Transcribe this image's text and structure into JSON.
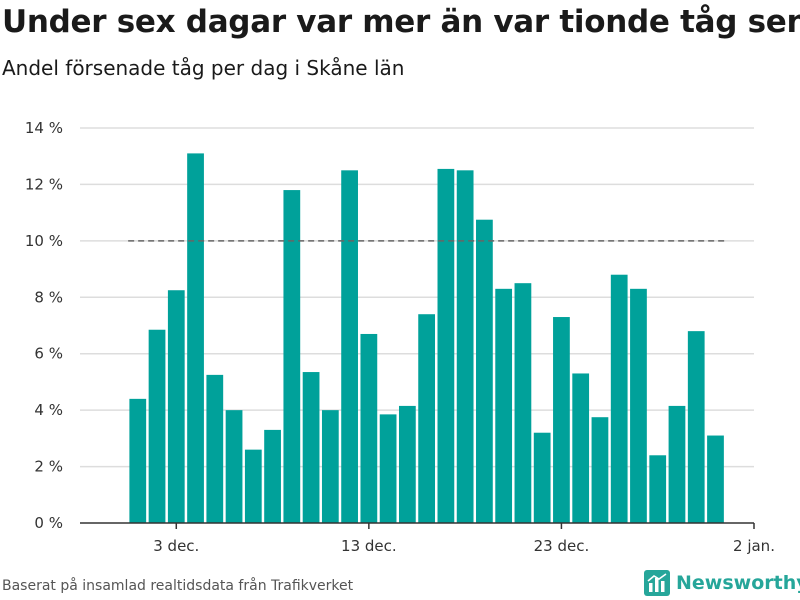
{
  "title": "Under sex dagar var mer än var tionde tåg sent",
  "subtitle": "Andel försenade tåg per dag i Skåne län",
  "source": "Baserat på insamlad realtidsdata från Trafikverket",
  "brand": {
    "name": "Newsworthy",
    "icon": "bar-chart-logo-icon"
  },
  "colors": {
    "bar": "#00a19a",
    "reference_line": "#666666",
    "grid": "#dddddd",
    "brand": "#26a69a"
  },
  "chart_data": {
    "type": "bar",
    "x_axis_type": "date",
    "x": [
      "2019-12-01",
      "2019-12-02",
      "2019-12-03",
      "2019-12-04",
      "2019-12-05",
      "2019-12-06",
      "2019-12-07",
      "2019-12-08",
      "2019-12-09",
      "2019-12-10",
      "2019-12-11",
      "2019-12-12",
      "2019-12-13",
      "2019-12-14",
      "2019-12-15",
      "2019-12-16",
      "2019-12-17",
      "2019-12-18",
      "2019-12-19",
      "2019-12-20",
      "2019-12-21",
      "2019-12-22",
      "2019-12-23",
      "2019-12-24",
      "2019-12-25",
      "2019-12-26",
      "2019-12-27",
      "2019-12-28",
      "2019-12-29",
      "2019-12-30",
      "2019-12-31"
    ],
    "values": [
      4.4,
      6.85,
      8.25,
      13.1,
      5.25,
      4.0,
      2.6,
      3.3,
      11.8,
      5.35,
      4.0,
      12.5,
      6.7,
      3.85,
      4.15,
      7.4,
      12.55,
      12.5,
      10.75,
      8.3,
      8.5,
      3.2,
      7.3,
      5.3,
      3.75,
      8.8,
      8.3,
      2.4,
      4.15,
      6.8,
      3.1
    ],
    "ylim": [
      0,
      14
    ],
    "y_ticks": [
      "0 %",
      "2 %",
      "4 %",
      "6 %",
      "8 %",
      "10 %",
      "12 %",
      "14 %"
    ],
    "y_tick_values": [
      0,
      2,
      4,
      6,
      8,
      10,
      12,
      14
    ],
    "x_ticks": [
      "3 dec.",
      "13 dec.",
      "23 dec.",
      "2 jan."
    ],
    "x_tick_dates": [
      "2019-12-03",
      "2019-12-13",
      "2019-12-23",
      "2020-01-02"
    ],
    "x_range": [
      "2019-11-28",
      "2020-01-02"
    ],
    "reference_line": {
      "value": 10,
      "style": "dashed",
      "from": "2019-12-01",
      "to": "2019-12-31"
    },
    "grid": true,
    "xlabel": "",
    "ylabel": ""
  }
}
